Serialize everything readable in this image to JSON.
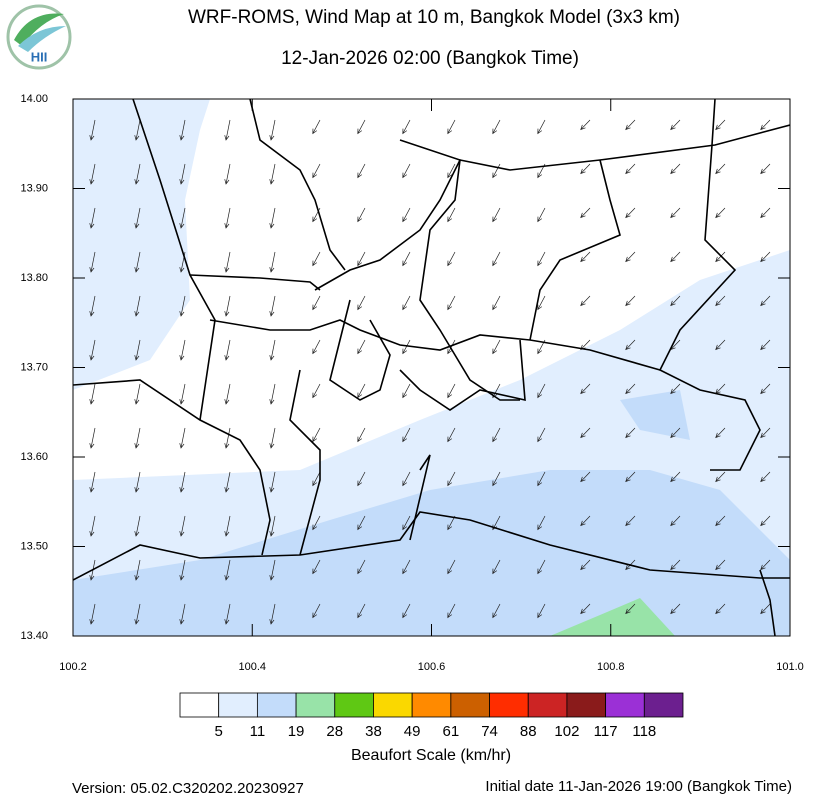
{
  "header": {
    "logo": "HII",
    "title": "WRF-ROMS, Wind Map at 10 m, Bangkok Model (3x3 km)",
    "subtitle": "12-Jan-2026 02:00 (Bangkok Time)"
  },
  "map": {
    "xlim": [
      100.2,
      101.0
    ],
    "ylim": [
      13.4,
      14.0
    ],
    "xticks": [
      {
        "value": 100.2,
        "label": "100.2"
      },
      {
        "value": 100.4,
        "label": "100.4"
      },
      {
        "value": 100.6,
        "label": "100.6"
      },
      {
        "value": 100.8,
        "label": "100.8"
      },
      {
        "value": 101.0,
        "label": "101.0"
      }
    ],
    "yticks": [
      {
        "value": 13.4,
        "label": "13.40"
      },
      {
        "value": 13.5,
        "label": "13.50"
      },
      {
        "value": 13.6,
        "label": "13.60"
      },
      {
        "value": 13.7,
        "label": "13.70"
      },
      {
        "value": 13.8,
        "label": "13.80"
      },
      {
        "value": 13.9,
        "label": "13.90"
      },
      {
        "value": 14.0,
        "label": "14.00"
      }
    ]
  },
  "legend": {
    "title": "Beaufort Scale (km/hr)",
    "colors": [
      "#ffffff",
      "#e1eefe",
      "#c3dcfa",
      "#98e3a8",
      "#5fc814",
      "#fad800",
      "#ff8a00",
      "#cc6000",
      "#ff2d00",
      "#cc2424",
      "#8a1b1b",
      "#9b30d6",
      "#6c1f8f"
    ],
    "bounds": [
      5,
      11,
      19,
      28,
      38,
      49,
      61,
      74,
      88,
      102,
      117,
      118
    ]
  },
  "footer": {
    "version": "Version: 05.02.C320202.20230927",
    "initial_date": "Initial date 11-Jan-2026 19:00 (Bangkok Time)"
  }
}
